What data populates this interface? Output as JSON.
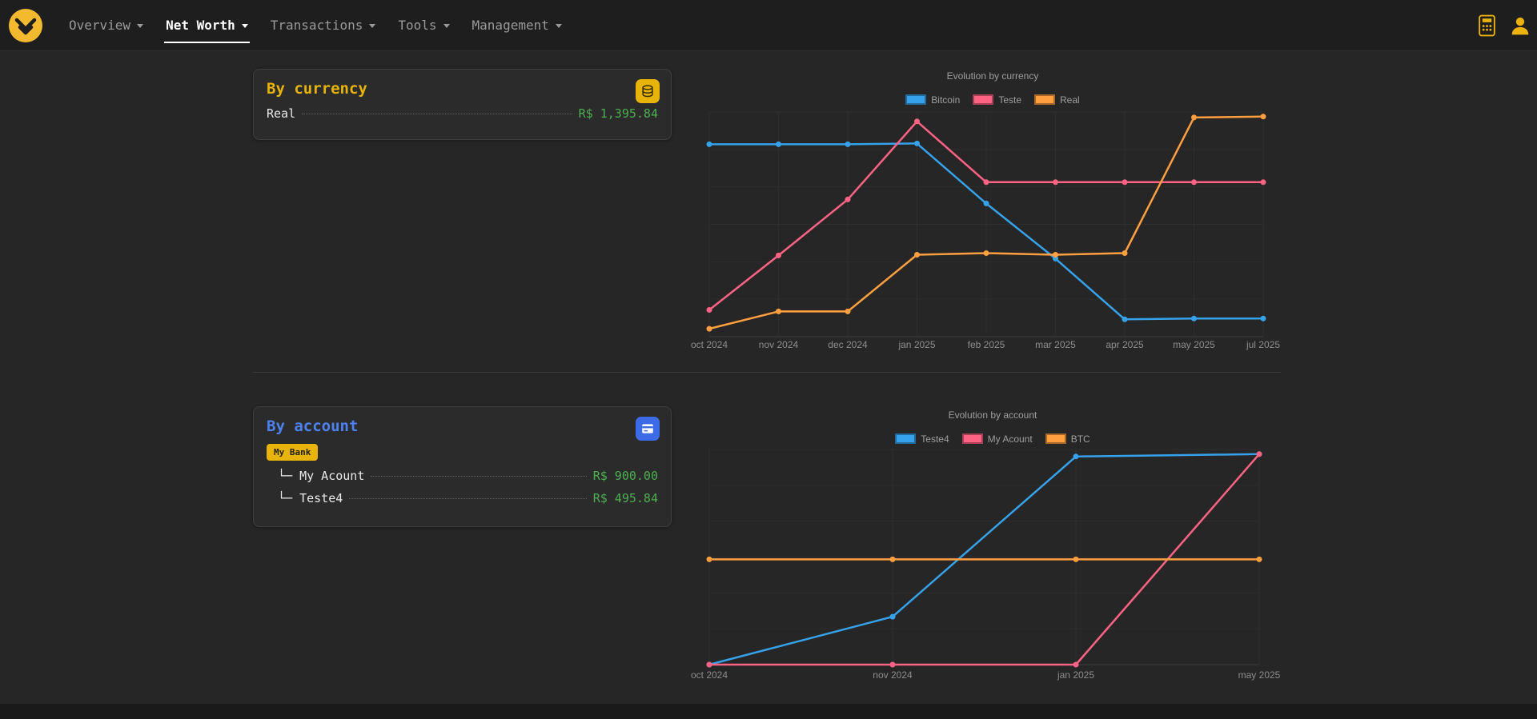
{
  "navbar": {
    "items": [
      {
        "label": "Overview"
      },
      {
        "label": "Net Worth"
      },
      {
        "label": "Transactions"
      },
      {
        "label": "Tools"
      },
      {
        "label": "Management"
      }
    ],
    "active_item": "Net Worth"
  },
  "currency_card": {
    "title": "By currency",
    "icon": "coins-icon",
    "rows": [
      {
        "label": "Real",
        "value": "R$ 1,395.84"
      }
    ]
  },
  "account_card": {
    "title": "By account",
    "icon": "bank-card-icon",
    "group_badge": "My Bank",
    "rows": [
      {
        "label": "└─ My Acount",
        "value": "R$ 900.00"
      },
      {
        "label": "└─ Teste4",
        "value": "R$ 495.84"
      }
    ]
  },
  "colors": {
    "accent_yellow": "#e8b40a",
    "accent_blue": "#3d6be8",
    "positive_green": "#4caf50",
    "series_blue": "#36a2eb",
    "series_pink": "#ff6384",
    "series_orange": "#ff9f40"
  },
  "chart_data": [
    {
      "type": "line",
      "title": "Evolution by currency",
      "categories": [
        "oct 2024",
        "nov 2024",
        "dec 2024",
        "jan 2025",
        "feb 2025",
        "mar 2025",
        "apr 2025",
        "may 2025",
        "jul 2025"
      ],
      "series": [
        {
          "name": "Bitcoin",
          "color": "#36a2eb",
          "values": [
            1220,
            1220,
            1220,
            1225,
            845,
            495,
            110,
            115,
            115
          ]
        },
        {
          "name": "Teste",
          "color": "#ff6384",
          "values": [
            170,
            515,
            870,
            1365,
            980,
            980,
            980,
            980,
            980
          ]
        },
        {
          "name": "Real",
          "color": "#ff9f40",
          "values": [
            50,
            160,
            160,
            520,
            530,
            520,
            530,
            1390,
            1395.84
          ]
        }
      ],
      "ylim": [
        0,
        1425
      ],
      "grid": true,
      "legend_position": "top"
    },
    {
      "type": "line",
      "title": "Evolution by account",
      "categories": [
        "oct 2024",
        "nov 2024",
        "jan 2025",
        "may 2025"
      ],
      "series": [
        {
          "name": "Teste4",
          "color": "#36a2eb",
          "values": [
            0,
            205,
            890,
            900
          ]
        },
        {
          "name": "My Acount",
          "color": "#ff6384",
          "values": [
            0,
            0,
            0,
            900
          ]
        },
        {
          "name": "BTC",
          "color": "#ff9f40",
          "values": [
            450,
            450,
            450,
            450
          ]
        }
      ],
      "ylim": [
        0,
        920
      ],
      "grid": true,
      "legend_position": "top"
    }
  ]
}
